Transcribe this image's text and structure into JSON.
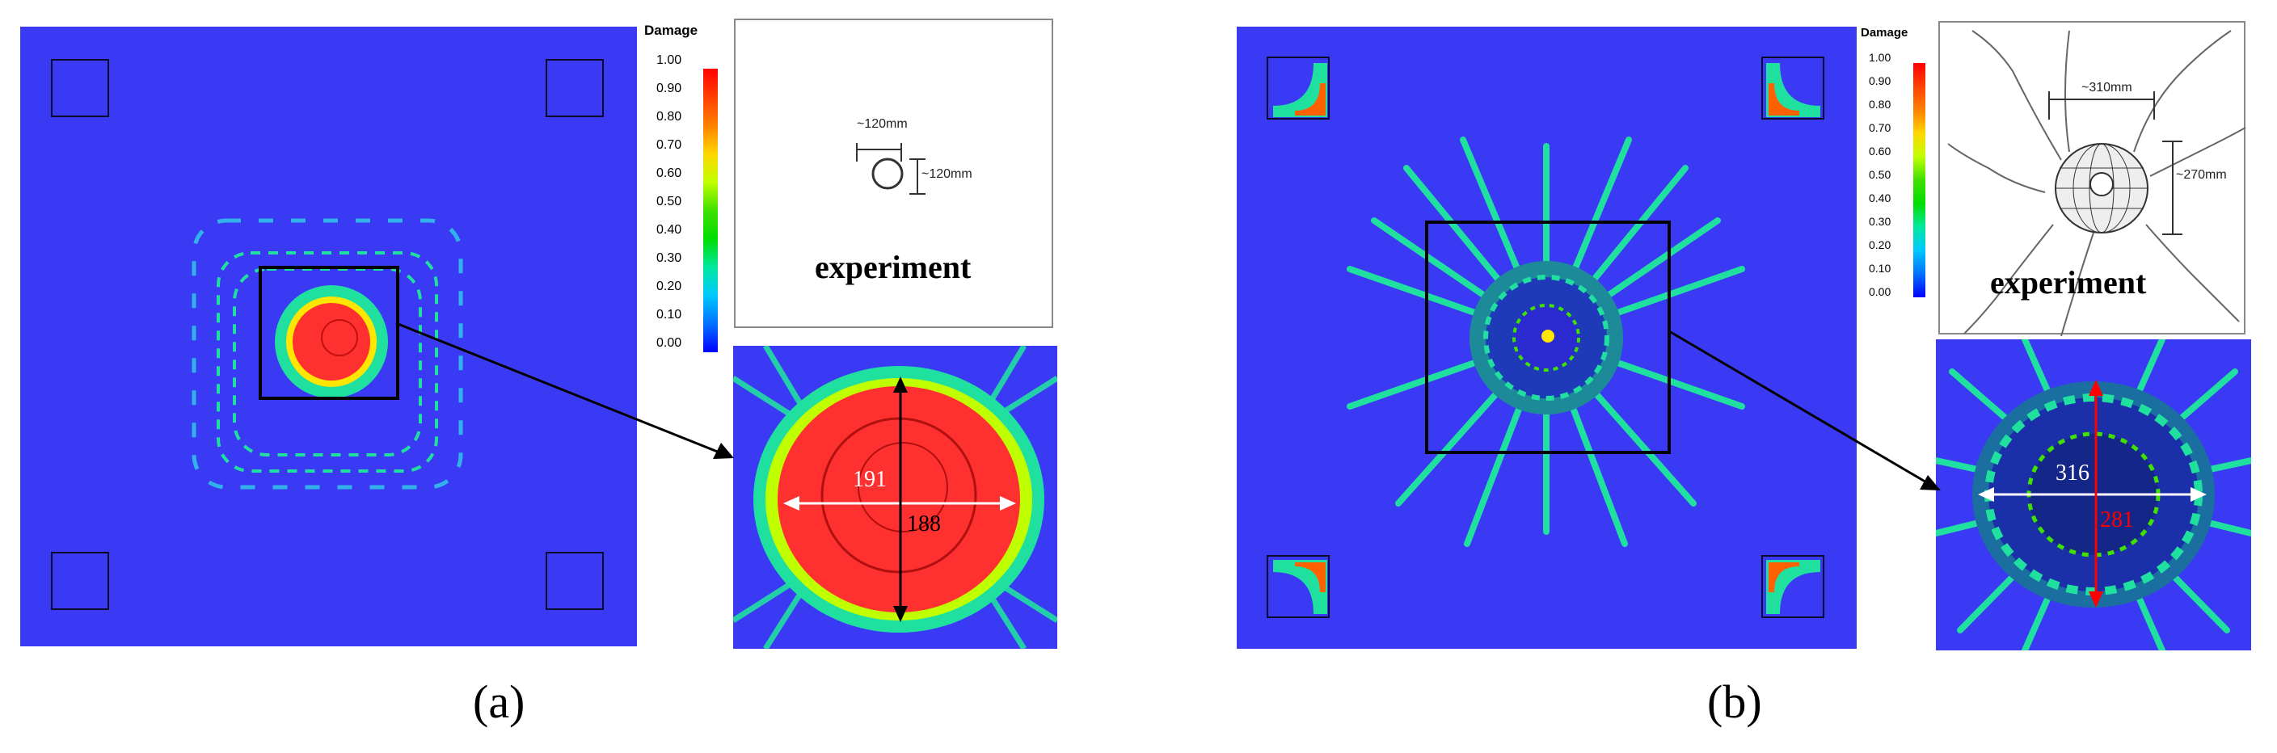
{
  "legend": {
    "title": "Damage",
    "ticks": [
      "1.00",
      "0.90",
      "0.80",
      "0.70",
      "0.60",
      "0.50",
      "0.40",
      "0.30",
      "0.20",
      "0.10",
      "0.00"
    ],
    "colors": [
      "#ff0000",
      "#ff4000",
      "#ff8000",
      "#ffd700",
      "#c0ff00",
      "#40e000",
      "#00dd00",
      "#00e8a0",
      "#00c8ff",
      "#0070ff",
      "#0000ff"
    ]
  },
  "panel_a": {
    "label": "(a)",
    "experiment_label": "experiment",
    "exp_dim_1": "~120mm",
    "exp_dim_2": "~120mm",
    "zoom_horizontal": "191",
    "zoom_vertical": "188"
  },
  "panel_b": {
    "label": "(b)",
    "experiment_label": "experiment",
    "exp_dim_1": "~310mm",
    "exp_dim_2": "~270mm",
    "zoom_horizontal": "316",
    "zoom_vertical": "281"
  },
  "colors": {
    "plate": "#3a3af4",
    "damage_high": "#ff3030",
    "damage_mid": "#ffe600",
    "damage_low": "#20e0a0",
    "arrow_white": "#ffffff",
    "arrow_red": "#ff0000"
  }
}
